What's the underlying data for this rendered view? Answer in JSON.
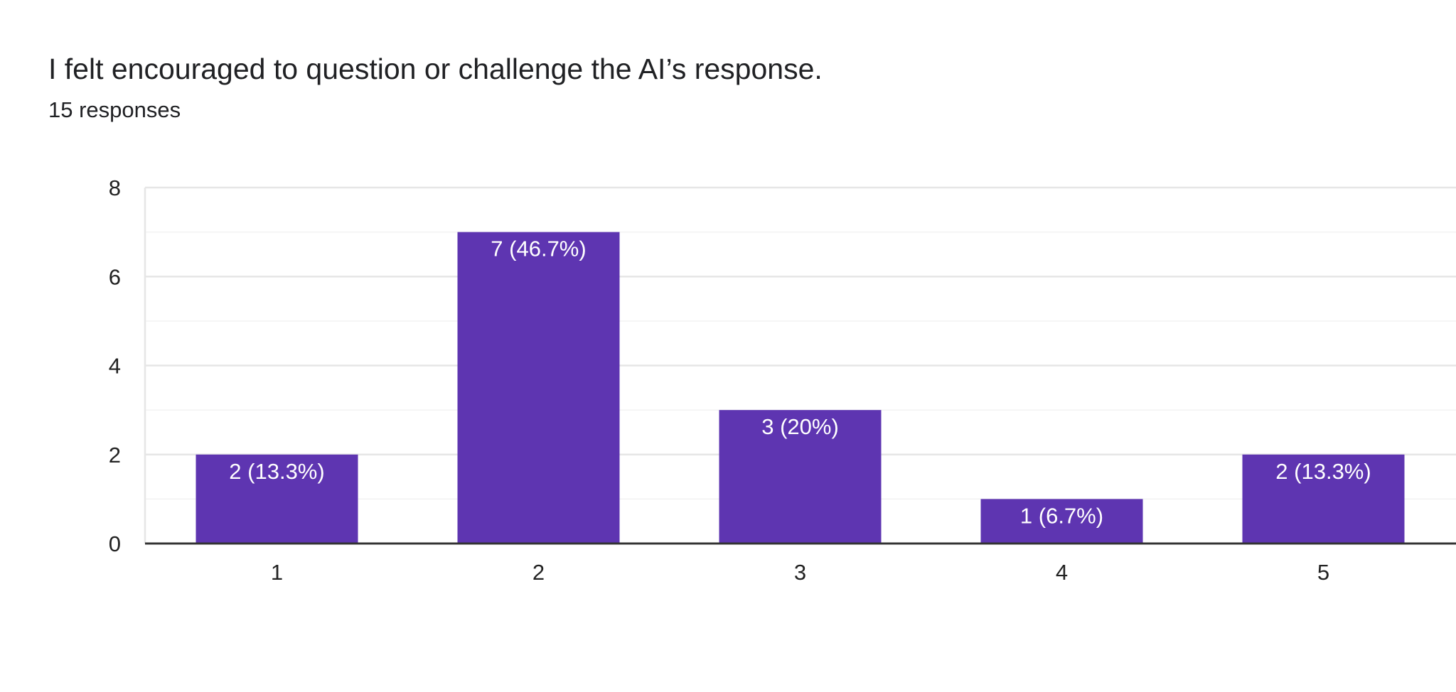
{
  "question": {
    "title": "I felt encouraged to question or challenge the AI’s response.",
    "responses": "15 responses"
  },
  "chart_data": {
    "type": "bar",
    "title": "I felt encouraged to question or challenge the AI’s response.",
    "subtitle": "15 responses",
    "categories": [
      "1",
      "2",
      "3",
      "4",
      "5"
    ],
    "values": [
      2,
      7,
      3,
      1,
      2
    ],
    "data_labels": [
      "2 (13.3%)",
      "7 (46.7%)",
      "3 (20%)",
      "1 (6.7%)",
      "2 (13.3%)"
    ],
    "xlabel": "",
    "ylabel": "",
    "ylim": [
      0,
      8
    ],
    "yticks": [
      0,
      2,
      4,
      6,
      8
    ],
    "grid": true,
    "legend": "none",
    "colors": {
      "bar": "#5e35b1",
      "grid_major": "#e6e6e6",
      "grid_minor": "#f2f2f2",
      "axis": "#333333"
    }
  }
}
